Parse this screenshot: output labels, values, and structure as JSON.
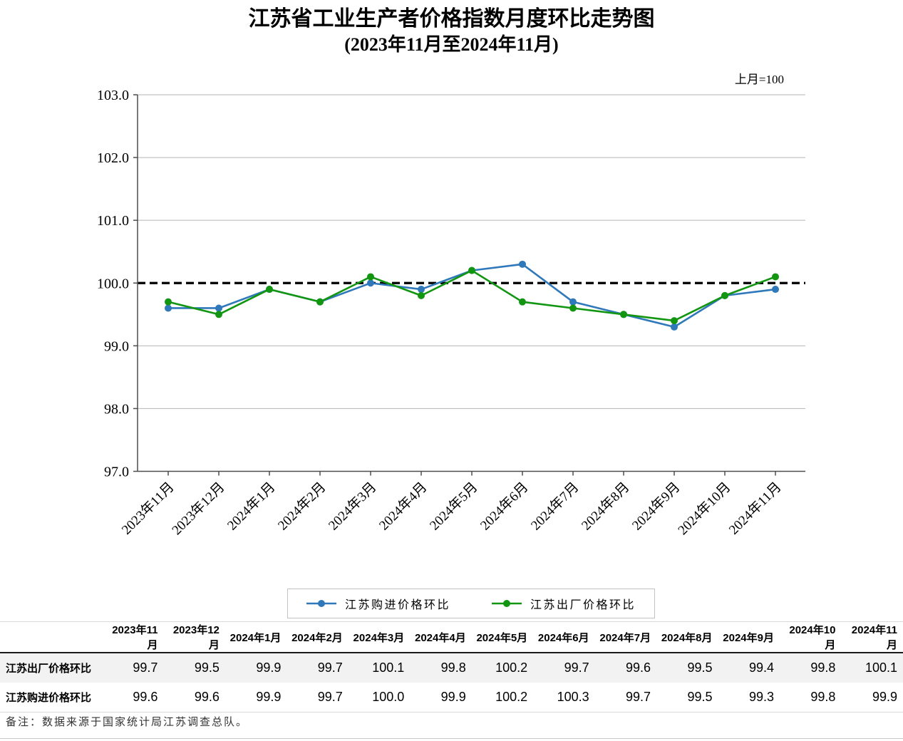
{
  "title": "江苏省工业生产者价格指数月度环比走势图",
  "subtitle": "(2023年11月至2024年11月)",
  "base_note": "上月=100",
  "footnote": "备注：数据来源于国家统计局江苏调查总队。",
  "colors": {
    "purchase_series": "#2F78BA",
    "factory_series": "#129612"
  },
  "chart_data": {
    "type": "line",
    "categories": [
      "2023年11月",
      "2023年12月",
      "2024年1月",
      "2024年2月",
      "2024年3月",
      "2024年4月",
      "2024年5月",
      "2024年6月",
      "2024年7月",
      "2024年8月",
      "2024年9月",
      "2024年10月",
      "2024年11月"
    ],
    "series": [
      {
        "name": "江苏购进价格环比",
        "color_key": "purchase_series",
        "values": [
          99.6,
          99.6,
          99.9,
          99.7,
          100.0,
          99.9,
          100.2,
          100.3,
          99.7,
          99.5,
          99.3,
          99.8,
          99.9
        ]
      },
      {
        "name": "江苏出厂价格环比",
        "color_key": "factory_series",
        "values": [
          99.7,
          99.5,
          99.9,
          99.7,
          100.1,
          99.8,
          100.2,
          99.7,
          99.6,
          99.5,
          99.4,
          99.8,
          100.1
        ]
      }
    ],
    "title": "江苏省工业生产者价格指数月度环比走势图(2023年11月至2024年11月)",
    "xlabel": "",
    "ylabel": "",
    "ylim": [
      97.0,
      103.0
    ],
    "ytick_step": 1.0,
    "ytick_labels": [
      "97.0",
      "98.0",
      "99.0",
      "100.0",
      "101.0",
      "102.0",
      "103.0"
    ],
    "reference_line": 100.0,
    "grid": true,
    "legend_position": "bottom"
  },
  "table": {
    "corner_label": "",
    "columns": [
      "2023年11月",
      "2023年12月",
      "2024年1月",
      "2024年2月",
      "2024年3月",
      "2024年4月",
      "2024年5月",
      "2024年6月",
      "2024年7月",
      "2024年8月",
      "2024年9月",
      "2024年10月",
      "2024年11月"
    ],
    "rows": [
      {
        "label": "江苏出厂价格环比",
        "values": [
          "99.7",
          "99.5",
          "99.9",
          "99.7",
          "100.1",
          "99.8",
          "100.2",
          "99.7",
          "99.6",
          "99.5",
          "99.4",
          "99.8",
          "100.1"
        ]
      },
      {
        "label": "江苏购进价格环比",
        "values": [
          "99.6",
          "99.6",
          "99.9",
          "99.7",
          "100.0",
          "99.9",
          "100.2",
          "100.3",
          "99.7",
          "99.5",
          "99.3",
          "99.8",
          "99.9"
        ]
      }
    ]
  }
}
